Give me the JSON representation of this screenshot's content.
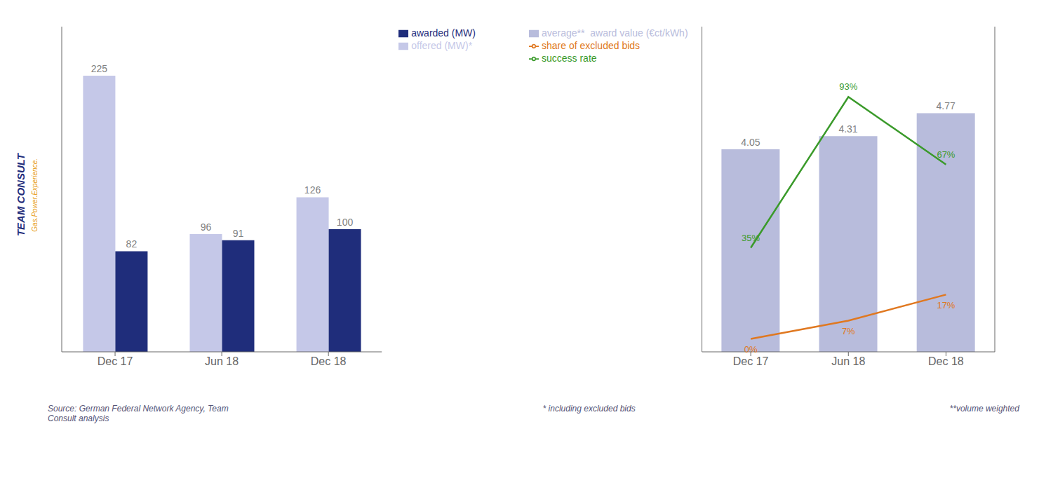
{
  "chart_data": [
    {
      "type": "bar",
      "categories": [
        "Dec 17",
        "Jun 18",
        "Dec 18"
      ],
      "series": [
        {
          "name": "offered (MW)*",
          "color": "#c5c8e8",
          "values": [
            225,
            96,
            126
          ]
        },
        {
          "name": "awarded (MW)",
          "color": "#1f2d7b",
          "values": [
            82,
            91,
            100
          ]
        }
      ],
      "ylim": [
        0,
        265
      ],
      "data_labels": true,
      "tick_labels": "x",
      "legend": "right",
      "annotations": [
        "TEAM CONSULT",
        "Gas.Power.Experience.",
        "Source: German Federal Network Agency, Team\nConsult analysis",
        "* including excluded bids"
      ]
    },
    {
      "type": "bar",
      "categories": [
        "Dec 17",
        "Jun 18",
        "Dec 18"
      ],
      "series": [
        {
          "name": "average**  award value (€ct/kWh)",
          "type": "bar",
          "color": "#b8bcdc",
          "values": [
            4.05,
            4.31,
            4.77
          ]
        },
        {
          "name": "share of excluded bids",
          "type": "line",
          "axis": "y2",
          "color": "#e07820",
          "values": [
            0,
            7,
            17
          ],
          "value_labels": [
            "0%",
            "7%",
            "17%"
          ]
        },
        {
          "name": "success rate",
          "type": "line",
          "axis": "y2",
          "color": "#3a9a2a",
          "values": [
            35,
            93,
            67
          ],
          "value_labels": [
            "35%",
            "93%",
            "67%"
          ]
        }
      ],
      "ylim": [
        0,
        6.5
      ],
      "y2lim": [
        -5,
        120
      ],
      "data_labels": true,
      "tick_labels": "x",
      "legend": "upper left",
      "annotations": [
        "**volume weighted"
      ]
    }
  ]
}
